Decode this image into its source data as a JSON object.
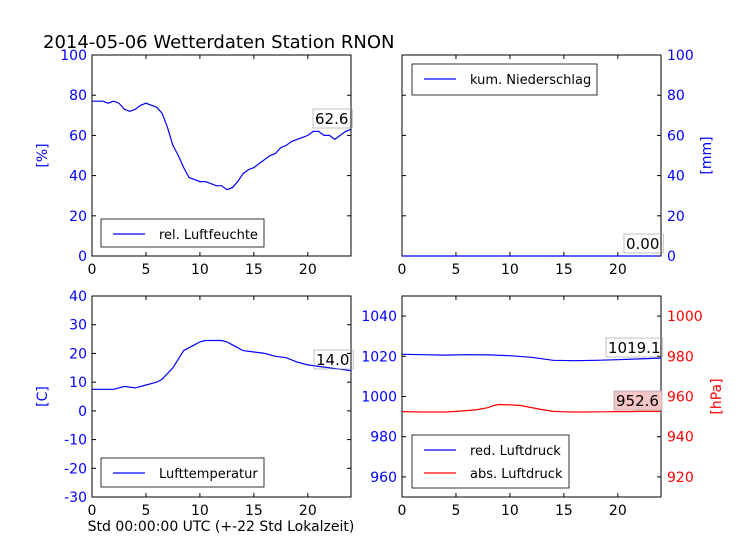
{
  "title": "2014-05-06 Wetterdaten Station RNON",
  "colors": {
    "blue": "#0000ff",
    "red": "#ff0000",
    "axis": "#000000",
    "annot_bg": "#f5c6c6"
  },
  "chart_data": [
    {
      "id": "humidity",
      "type": "line",
      "xlabel": "",
      "ylabel": "[%]",
      "ylabel_color": "blue",
      "xlim": [
        0,
        24
      ],
      "ylim": [
        0,
        100
      ],
      "xticks": [
        0,
        5,
        10,
        15,
        20
      ],
      "yticks": [
        0,
        20,
        40,
        60,
        80,
        100
      ],
      "ytick_color": "blue",
      "legend": "bottom-left",
      "series": [
        {
          "name": "rel. Luftfeuchte",
          "color": "blue",
          "x": [
            0,
            0.5,
            1,
            1.5,
            2,
            2.5,
            3,
            3.5,
            4,
            4.5,
            5,
            5.5,
            6,
            6.5,
            7,
            7.5,
            8,
            8.5,
            9,
            9.5,
            10,
            10.5,
            11,
            11.5,
            12,
            12.5,
            13,
            13.5,
            14,
            14.5,
            15,
            15.5,
            16,
            16.5,
            17,
            17.5,
            18,
            18.5,
            19,
            19.5,
            20,
            20.5,
            21,
            21.5,
            22,
            22.5,
            23,
            23.5,
            24
          ],
          "y": [
            77,
            77,
            77,
            76,
            77,
            76,
            73,
            72,
            73,
            75,
            76,
            75,
            74,
            71,
            64,
            55,
            50,
            44,
            39,
            38,
            37,
            37,
            36,
            35,
            35,
            33,
            34,
            37,
            41,
            43,
            44,
            46,
            48,
            50,
            51,
            54,
            55,
            57,
            58,
            59,
            60,
            62,
            62,
            60,
            60,
            58,
            60,
            62,
            63
          ]
        }
      ],
      "annotation": "62.6"
    },
    {
      "id": "precipitation",
      "type": "line",
      "xlabel": "",
      "ylabel": "[mm]",
      "ylabel_color": "blue",
      "ylabel_side": "right",
      "xlim": [
        0,
        24
      ],
      "ylim": [
        0,
        100
      ],
      "xticks": [
        0,
        5,
        10,
        15,
        20
      ],
      "yticks": [
        0,
        20,
        40,
        60,
        80,
        100
      ],
      "ytick_color": "blue",
      "legend": "top-left",
      "series": [
        {
          "name": "kum. Niederschlag",
          "color": "blue",
          "x": [
            0,
            24
          ],
          "y": [
            0,
            0
          ]
        }
      ],
      "annotation": "0.00"
    },
    {
      "id": "temperature",
      "type": "line",
      "xlabel": "Std 00:00:00 UTC (+-22 Std Lokalzeit)",
      "ylabel": "[C]",
      "ylabel_color": "blue",
      "xlim": [
        0,
        24
      ],
      "ylim": [
        -30,
        40
      ],
      "xticks": [
        0,
        5,
        10,
        15,
        20
      ],
      "yticks": [
        -30,
        -20,
        -10,
        0,
        10,
        20,
        30,
        40
      ],
      "ytick_color": "blue",
      "legend": "bottom-left",
      "series": [
        {
          "name": "Lufttemperatur",
          "color": "blue",
          "x": [
            0,
            1,
            2,
            2.5,
            3,
            4,
            5,
            5.5,
            6,
            6.5,
            7,
            7.5,
            8,
            8.5,
            9,
            9.5,
            10,
            10.5,
            11,
            11.5,
            12,
            12.5,
            13,
            13.5,
            14,
            15,
            16,
            17,
            18,
            19,
            20,
            21,
            22,
            23,
            24
          ],
          "y": [
            7.5,
            7.5,
            7.5,
            8,
            8.5,
            8,
            9,
            9.5,
            10,
            11,
            13,
            15,
            18,
            21,
            22,
            23,
            24,
            24.5,
            24.5,
            24.5,
            24.5,
            24,
            23,
            22,
            21,
            20.5,
            20,
            19,
            18.5,
            17,
            16,
            15.5,
            15,
            14.5,
            14
          ]
        }
      ],
      "annotation": "14.0"
    },
    {
      "id": "pressure",
      "type": "line",
      "xlabel": "",
      "ylabel": "",
      "xlim": [
        0,
        24
      ],
      "ylim": [
        950,
        1050
      ],
      "xticks": [
        0,
        5,
        10,
        15,
        20
      ],
      "yticks": [
        960,
        980,
        1000,
        1020,
        1040
      ],
      "ytick_color": "blue",
      "y2label": "[hPa]",
      "y2label_color": "red",
      "y2lim": [
        910,
        1010
      ],
      "y2ticks": [
        920,
        940,
        960,
        980,
        1000
      ],
      "y2tick_color": "red",
      "legend": "bottom-left",
      "series": [
        {
          "name": "red. Luftdruck",
          "color": "blue",
          "axis": "left",
          "x": [
            0,
            2,
            4,
            6,
            8,
            10,
            12,
            14,
            16,
            18,
            20,
            22,
            24
          ],
          "y": [
            1021,
            1020.8,
            1020.6,
            1020.8,
            1020.7,
            1020.3,
            1019.5,
            1018,
            1017.8,
            1018,
            1018.3,
            1018.7,
            1019.1
          ]
        },
        {
          "name": "abs. Luftdruck",
          "color": "red",
          "axis": "right",
          "x": [
            0,
            2,
            4,
            5,
            6,
            7,
            8,
            8.5,
            9,
            10,
            11,
            12,
            13,
            14,
            15,
            16,
            17,
            18,
            19,
            20,
            21,
            22,
            23,
            24
          ],
          "y": [
            952.5,
            952.3,
            952.3,
            952.6,
            953,
            953.5,
            954.5,
            955.5,
            956,
            955.8,
            955.5,
            954.5,
            953.5,
            952.6,
            952.4,
            952.3,
            952.3,
            952.4,
            952.4,
            952.5,
            952.5,
            952.6,
            952.6,
            952.6
          ]
        }
      ],
      "annotations": [
        "1019.1",
        "952.6"
      ]
    }
  ]
}
